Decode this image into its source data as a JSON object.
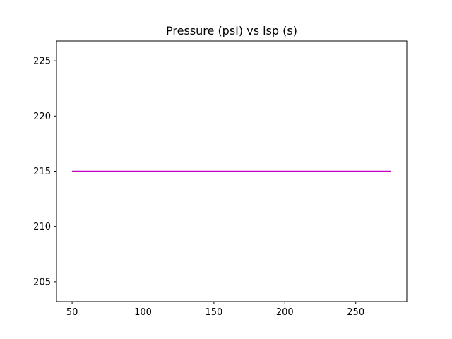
{
  "chart_data": {
    "type": "line",
    "title": "Pressure  (psI) vs isp (s)",
    "xlabel": "",
    "ylabel": "",
    "xlim": [
      39,
      286
    ],
    "ylim": [
      203.2,
      226.8
    ],
    "x_ticks": [
      50,
      100,
      150,
      200,
      250
    ],
    "y_ticks": [
      205,
      210,
      215,
      220,
      225
    ],
    "grid": false,
    "series": [
      {
        "color": "#bf00bf",
        "x": [
          50,
          275
        ],
        "y": [
          215,
          215
        ]
      }
    ]
  }
}
